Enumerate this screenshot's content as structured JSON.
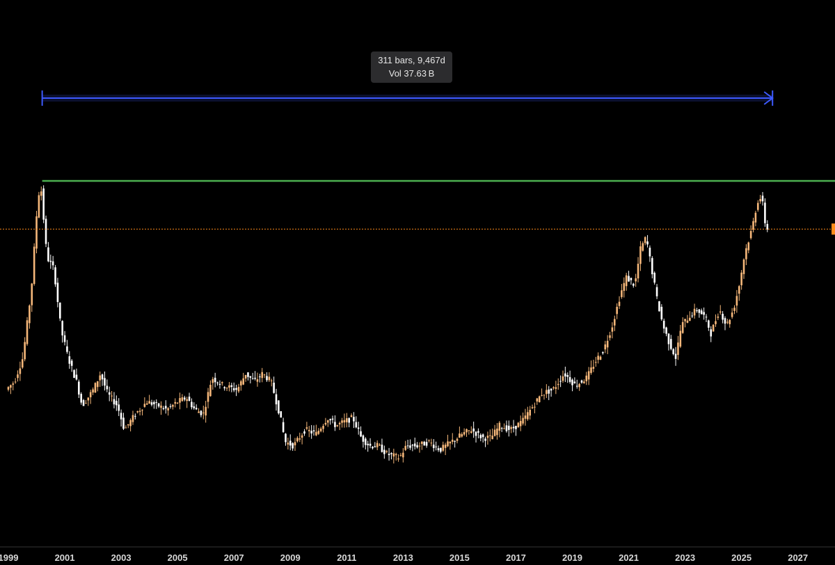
{
  "measure": {
    "bars_text": "311 bars, 9,467d",
    "vol_text": "Vol 37.63 B",
    "arrow_color": "#3d5afe"
  },
  "colors": {
    "background": "#000000",
    "up_candle": "#f5b77a",
    "down_candle": "#ffffff",
    "resistance_line": "#4caf50",
    "price_line": "#ff8c1a",
    "axis_text": "#d8d8d8"
  },
  "chart_data": {
    "type": "candlestick",
    "title": "",
    "xlabel": "",
    "ylabel": "",
    "x_tick_labels": [
      "1999",
      "2001",
      "2003",
      "2005",
      "2007",
      "2009",
      "2011",
      "2013",
      "2015",
      "2017",
      "2019",
      "2021",
      "2023",
      "2025",
      "2027"
    ],
    "x_range": [
      1999.0,
      2027.6
    ],
    "y_range": [
      0,
      100
    ],
    "grid": false,
    "y_axis_note": "relative scale (0-100), price axis not visible",
    "resistance_level": 82,
    "last_price_level": 70,
    "measure_range": {
      "start": 2000.2,
      "end": 2026.1
    },
    "path": [
      [
        1999.0,
        30
      ],
      [
        1999.3,
        32
      ],
      [
        1999.6,
        38
      ],
      [
        1999.9,
        55
      ],
      [
        2000.1,
        75
      ],
      [
        2000.22,
        82
      ],
      [
        2000.45,
        63
      ],
      [
        2000.7,
        60
      ],
      [
        2000.95,
        45
      ],
      [
        2001.2,
        38
      ],
      [
        2001.5,
        32
      ],
      [
        2001.7,
        26
      ],
      [
        2002.1,
        30
      ],
      [
        2002.35,
        34
      ],
      [
        2002.6,
        29
      ],
      [
        2002.95,
        26
      ],
      [
        2003.2,
        20
      ],
      [
        2003.6,
        24
      ],
      [
        2004.0,
        27
      ],
      [
        2004.4,
        26
      ],
      [
        2004.7,
        25
      ],
      [
        2005.1,
        27
      ],
      [
        2005.4,
        28
      ],
      [
        2005.7,
        25
      ],
      [
        2006.0,
        24
      ],
      [
        2006.3,
        33
      ],
      [
        2006.7,
        31
      ],
      [
        2007.2,
        30
      ],
      [
        2007.5,
        34
      ],
      [
        2007.8,
        32
      ],
      [
        2008.1,
        34
      ],
      [
        2008.4,
        32
      ],
      [
        2008.7,
        24
      ],
      [
        2008.9,
        17
      ],
      [
        2009.2,
        16
      ],
      [
        2009.6,
        20
      ],
      [
        2010.0,
        19
      ],
      [
        2010.4,
        23
      ],
      [
        2010.7,
        21
      ],
      [
        2011.0,
        22
      ],
      [
        2011.3,
        23
      ],
      [
        2011.6,
        18
      ],
      [
        2011.9,
        16
      ],
      [
        2012.2,
        16
      ],
      [
        2012.5,
        14
      ],
      [
        2012.95,
        13
      ],
      [
        2013.2,
        16
      ],
      [
        2013.6,
        16
      ],
      [
        2014.0,
        17
      ],
      [
        2014.4,
        15
      ],
      [
        2014.8,
        17
      ],
      [
        2015.2,
        19
      ],
      [
        2015.5,
        20
      ],
      [
        2015.9,
        18
      ],
      [
        2016.2,
        18
      ],
      [
        2016.5,
        21
      ],
      [
        2016.9,
        20
      ],
      [
        2017.3,
        22
      ],
      [
        2017.7,
        26
      ],
      [
        2018.0,
        29
      ],
      [
        2018.4,
        30
      ],
      [
        2018.8,
        34
      ],
      [
        2019.2,
        31
      ],
      [
        2019.6,
        33
      ],
      [
        2019.9,
        37
      ],
      [
        2020.2,
        40
      ],
      [
        2020.5,
        46
      ],
      [
        2020.8,
        54
      ],
      [
        2021.0,
        58
      ],
      [
        2021.3,
        56
      ],
      [
        2021.5,
        65
      ],
      [
        2021.7,
        68
      ],
      [
        2021.9,
        60
      ],
      [
        2022.1,
        52
      ],
      [
        2022.3,
        46
      ],
      [
        2022.5,
        42
      ],
      [
        2022.75,
        38
      ],
      [
        2022.95,
        46
      ],
      [
        2023.2,
        48
      ],
      [
        2023.5,
        50
      ],
      [
        2023.8,
        48
      ],
      [
        2024.0,
        44
      ],
      [
        2024.3,
        50
      ],
      [
        2024.55,
        46
      ],
      [
        2024.8,
        50
      ],
      [
        2025.0,
        56
      ],
      [
        2025.2,
        64
      ],
      [
        2025.45,
        70
      ],
      [
        2025.65,
        77
      ],
      [
        2025.8,
        78
      ],
      [
        2025.95,
        70
      ]
    ]
  }
}
